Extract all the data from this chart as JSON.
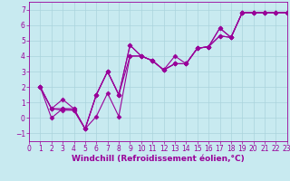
{
  "background_color": "#c8eaf0",
  "grid_color": "#aad4dc",
  "line_color": "#990099",
  "marker": "D",
  "marker_size": 2.5,
  "line_width": 0.8,
  "xlim": [
    0,
    23
  ],
  "ylim": [
    -1.5,
    7.5
  ],
  "xlabel": "Windchill (Refroidissement éolien,°C)",
  "xlabel_fontsize": 6.5,
  "xticks": [
    0,
    1,
    2,
    3,
    4,
    5,
    6,
    7,
    8,
    9,
    10,
    11,
    12,
    13,
    14,
    15,
    16,
    17,
    18,
    19,
    20,
    21,
    22,
    23
  ],
  "yticks": [
    -1,
    0,
    1,
    2,
    3,
    4,
    5,
    6,
    7
  ],
  "tick_fontsize": 5.5,
  "series": [
    {
      "x": [
        1,
        2,
        3,
        4,
        5,
        6,
        7,
        8,
        9,
        10,
        11,
        12,
        13,
        14,
        15,
        16,
        17,
        18,
        19,
        20,
        21,
        22,
        23
      ],
      "y": [
        2,
        0.0,
        0.6,
        0.5,
        -0.7,
        0.1,
        1.6,
        0.1,
        4.0,
        4.0,
        3.7,
        3.1,
        4.0,
        3.5,
        4.5,
        4.6,
        5.3,
        5.2,
        6.8,
        6.8,
        6.8,
        6.8,
        6.8
      ]
    },
    {
      "x": [
        1,
        2,
        3,
        4,
        5,
        6,
        7,
        8,
        9,
        10,
        11,
        12,
        13,
        14,
        15,
        16,
        17,
        18,
        19,
        20,
        21,
        22,
        23
      ],
      "y": [
        2,
        0.6,
        1.2,
        0.6,
        -0.7,
        1.5,
        3.0,
        1.5,
        4.7,
        4.0,
        3.7,
        3.1,
        3.5,
        3.5,
        4.5,
        4.6,
        5.8,
        5.2,
        6.8,
        6.8,
        6.8,
        6.8,
        6.8
      ]
    },
    {
      "x": [
        1,
        2,
        3,
        4,
        5,
        6,
        7,
        8,
        9,
        10,
        11,
        12,
        13,
        14,
        15,
        16,
        17,
        18,
        19,
        20,
        21,
        22,
        23
      ],
      "y": [
        2,
        0.6,
        0.5,
        0.5,
        -0.7,
        1.5,
        3.0,
        1.5,
        4.7,
        4.0,
        3.7,
        3.1,
        3.5,
        3.5,
        4.5,
        4.6,
        5.8,
        5.2,
        6.8,
        6.8,
        6.8,
        6.8,
        6.8
      ]
    },
    {
      "x": [
        1,
        2,
        3,
        4,
        5,
        6,
        7,
        8,
        9,
        10,
        11,
        12,
        13,
        14,
        15,
        16,
        17,
        18,
        19,
        20,
        21,
        22,
        23
      ],
      "y": [
        2,
        0.6,
        0.6,
        0.6,
        -0.7,
        1.5,
        3.0,
        1.5,
        4.0,
        4.0,
        3.7,
        3.1,
        3.5,
        3.5,
        4.5,
        4.6,
        5.3,
        5.2,
        6.8,
        6.8,
        6.8,
        6.8,
        6.8
      ]
    }
  ]
}
